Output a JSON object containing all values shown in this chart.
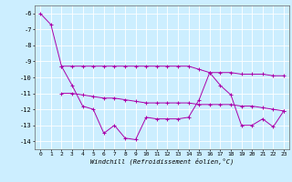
{
  "xlabel": "Windchill (Refroidissement éolien,°C)",
  "background_color": "#cceeff",
  "grid_color": "#ffffff",
  "line_color": "#aa00aa",
  "xlim": [
    -0.5,
    23.5
  ],
  "ylim": [
    -14.5,
    -5.5
  ],
  "yticks": [
    -6,
    -7,
    -8,
    -9,
    -10,
    -11,
    -12,
    -13,
    -14
  ],
  "xticks": [
    0,
    1,
    2,
    3,
    4,
    5,
    6,
    7,
    8,
    9,
    10,
    11,
    12,
    13,
    14,
    15,
    16,
    17,
    18,
    19,
    20,
    21,
    22,
    23
  ],
  "line1_x": [
    0,
    1,
    2,
    3,
    4,
    5,
    6,
    7,
    8,
    9,
    10,
    11,
    12,
    13,
    14,
    15,
    16,
    17,
    18,
    19,
    20,
    21,
    22,
    23
  ],
  "line1_y": [
    -6.0,
    -6.7,
    -9.3,
    -10.5,
    -11.8,
    -12.0,
    -13.5,
    -13.0,
    -13.8,
    -13.9,
    -12.5,
    -12.6,
    -12.6,
    -12.6,
    -12.5,
    -11.4,
    -9.7,
    -10.5,
    -11.1,
    -13.0,
    -13.0,
    -12.6,
    -13.1,
    -12.1
  ],
  "line2_x": [
    2,
    3,
    4,
    5,
    6,
    7,
    8,
    9,
    10,
    11,
    12,
    13,
    14,
    15,
    16,
    17,
    18,
    19,
    20,
    21,
    22,
    23
  ],
  "line2_y": [
    -9.3,
    -9.3,
    -9.3,
    -9.3,
    -9.3,
    -9.3,
    -9.3,
    -9.3,
    -9.3,
    -9.3,
    -9.3,
    -9.3,
    -9.3,
    -9.5,
    -9.7,
    -9.7,
    -9.7,
    -9.8,
    -9.8,
    -9.8,
    -9.9,
    -9.9
  ],
  "line3_x": [
    2,
    3,
    4,
    5,
    6,
    7,
    8,
    9,
    10,
    11,
    12,
    13,
    14,
    15,
    16,
    17,
    18,
    19,
    20,
    21,
    22,
    23
  ],
  "line3_y": [
    -11.0,
    -11.0,
    -11.1,
    -11.2,
    -11.3,
    -11.3,
    -11.4,
    -11.5,
    -11.6,
    -11.6,
    -11.6,
    -11.6,
    -11.6,
    -11.7,
    -11.7,
    -11.7,
    -11.7,
    -11.8,
    -11.8,
    -11.9,
    -12.0,
    -12.1
  ]
}
